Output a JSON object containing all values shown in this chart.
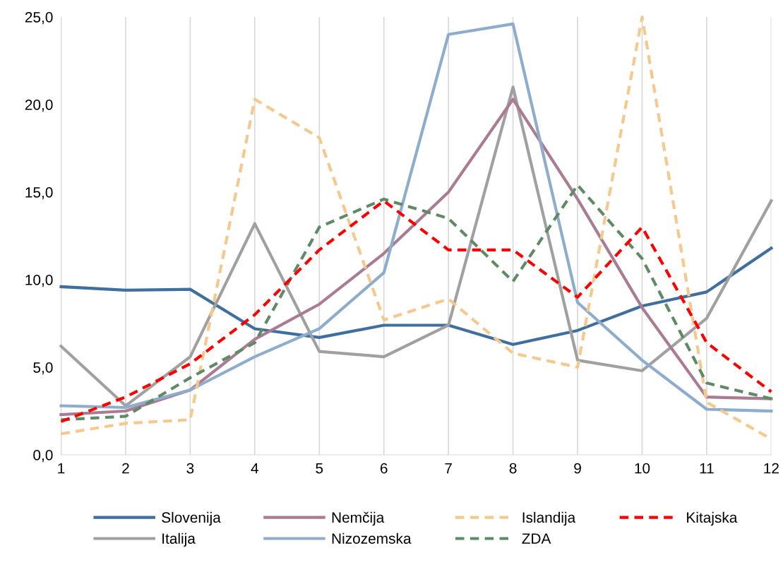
{
  "chart_data": {
    "type": "line",
    "x": [
      1,
      2,
      3,
      4,
      5,
      6,
      7,
      8,
      9,
      10,
      11,
      12
    ],
    "xlim": [
      1,
      12
    ],
    "xticks": [
      1,
      2,
      3,
      4,
      5,
      6,
      7,
      8,
      9,
      10,
      11,
      12
    ],
    "ylim": [
      0,
      25
    ],
    "yticks": [
      {
        "value": 0,
        "label": "0,0"
      },
      {
        "value": 5,
        "label": "5,0"
      },
      {
        "value": 10,
        "label": "10,0"
      },
      {
        "value": 15,
        "label": "15,0"
      },
      {
        "value": 20,
        "label": "20,0"
      },
      {
        "value": 25,
        "label": "25,0"
      }
    ],
    "grid": "x",
    "legend": "bottom",
    "marker": "none",
    "series": [
      {
        "name": "Slovenija",
        "color": "#3f6f9f",
        "line_style": "solid",
        "values": [
          9.6,
          9.4,
          9.45,
          7.2,
          6.7,
          7.4,
          7.4,
          6.3,
          7.1,
          8.5,
          9.3,
          11.8
        ]
      },
      {
        "name": "Italija",
        "color": "#a0a0a0",
        "line_style": "solid",
        "values": [
          6.2,
          2.8,
          5.6,
          13.2,
          5.9,
          5.6,
          7.4,
          21.0,
          5.4,
          4.8,
          7.8,
          14.5
        ]
      },
      {
        "name": "Nemčija",
        "color": "#a97c94",
        "line_style": "solid",
        "values": [
          2.3,
          2.5,
          3.7,
          6.6,
          8.6,
          11.5,
          15.0,
          20.3,
          14.6,
          8.4,
          3.3,
          3.2
        ]
      },
      {
        "name": "Nizozemska",
        "color": "#8eaccc",
        "line_style": "solid",
        "values": [
          2.8,
          2.7,
          3.7,
          5.6,
          7.2,
          10.4,
          24.0,
          24.6,
          8.7,
          5.4,
          2.6,
          2.5
        ]
      },
      {
        "name": "Islandija",
        "color": "#f5c98e",
        "line_style": "dashed",
        "values": [
          1.2,
          1.8,
          2.0,
          20.3,
          18.1,
          7.7,
          8.9,
          5.8,
          5.0,
          25.0,
          3.0,
          0.9
        ]
      },
      {
        "name": "ZDA",
        "color": "#5e8a66",
        "line_style": "dashed",
        "values": [
          2.0,
          2.2,
          4.4,
          6.4,
          13.0,
          14.6,
          13.5,
          9.9,
          15.4,
          11.2,
          4.1,
          3.2
        ]
      },
      {
        "name": "Kitajska",
        "color": "#ff0000",
        "line_style": "dashed",
        "values": [
          1.9,
          3.3,
          5.2,
          8.0,
          11.7,
          14.5,
          11.7,
          11.7,
          9.0,
          13.0,
          6.4,
          3.6
        ]
      }
    ]
  }
}
